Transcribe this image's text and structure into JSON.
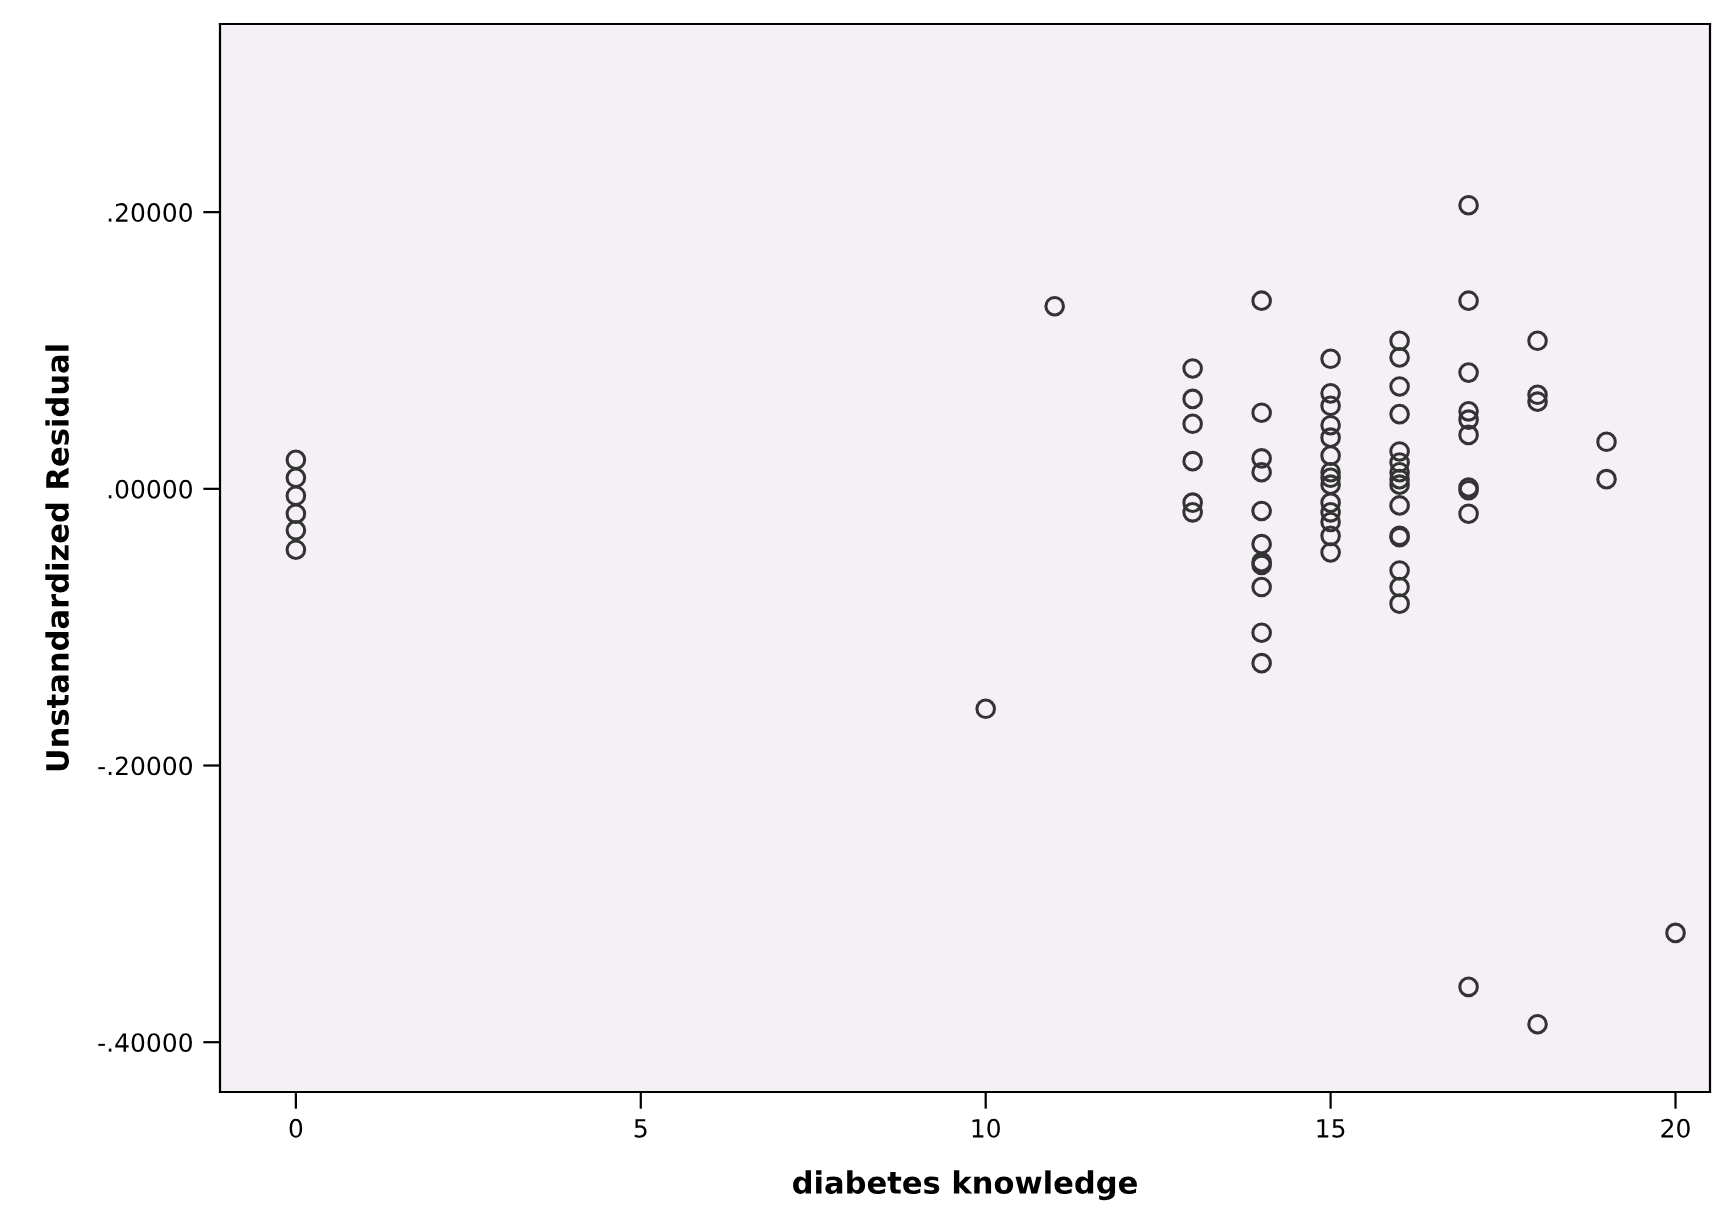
{
  "chart_data": {
    "type": "scatter",
    "xlabel": "diabetes knowledge",
    "ylabel": "Unstandardized Residual",
    "marker": "circle",
    "grid": false,
    "legend": false,
    "xlim": [
      -1.1,
      20.5
    ],
    "xticks": [
      0,
      5,
      10,
      15,
      20
    ],
    "ylim": [
      -0.436,
      0.336
    ],
    "yticks": [
      {
        "value": 0.2,
        "label": ".20000"
      },
      {
        "value": 0,
        "label": ".00000"
      },
      {
        "value": -0.2,
        "label": "-.20000"
      },
      {
        "value": -0.4,
        "label": "-.40000"
      }
    ],
    "series": [
      {
        "color": "#333333",
        "x": [
          0,
          0,
          0,
          0,
          0,
          0,
          10,
          11,
          13,
          13,
          13,
          13,
          13,
          13,
          14,
          14,
          14,
          14,
          14,
          14,
          14,
          14,
          14,
          14,
          14,
          15,
          15,
          15,
          15,
          15,
          15,
          15,
          15,
          15,
          15,
          15,
          15,
          15,
          15,
          16,
          16,
          16,
          16,
          16,
          16,
          16,
          16,
          16,
          16,
          16,
          16,
          16,
          16,
          16,
          17,
          17,
          17,
          17,
          17,
          17,
          17,
          17,
          17,
          17,
          18,
          18,
          18,
          18,
          19,
          19,
          20
        ],
        "values": [
          0.021,
          0.008,
          -0.005,
          -0.018,
          -0.03,
          -0.044,
          -0.159,
          0.132,
          0.087,
          0.065,
          0.047,
          0.02,
          -0.01,
          -0.017,
          0.136,
          0.055,
          0.022,
          0.012,
          -0.016,
          -0.04,
          -0.053,
          -0.055,
          -0.071,
          -0.104,
          -0.126,
          0.094,
          0.069,
          0.06,
          0.046,
          0.037,
          0.024,
          0.012,
          0.008,
          0.003,
          -0.01,
          -0.017,
          -0.024,
          -0.034,
          -0.046,
          0.107,
          0.095,
          0.074,
          0.054,
          0.027,
          0.019,
          0.012,
          0.007,
          0.003,
          -0.012,
          -0.034,
          -0.035,
          -0.059,
          -0.071,
          -0.083,
          0.205,
          0.136,
          0.084,
          0.056,
          0.05,
          0.039,
          0.001,
          -0.001,
          -0.018,
          -0.36,
          0.107,
          0.068,
          0.063,
          -0.387,
          0.034,
          0.007,
          -0.321
        ]
      }
    ]
  }
}
